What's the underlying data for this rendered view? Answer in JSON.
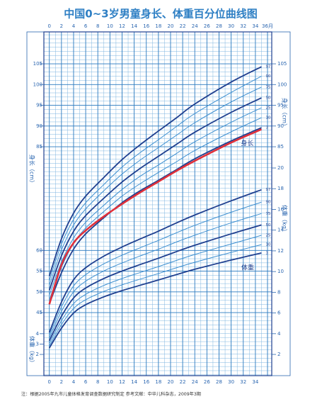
{
  "chart_data": {
    "type": "line",
    "title": "中国0~3岁男童身长、体重百分位曲线图",
    "y_label": "身长（cm）",
    "y2_label": "体重（kg）",
    "annotations": [
      "体重"
    ],
    "footnote": "注：根据2005年九市儿童体格发育调查数据研究制定    参考文献：中华儿科杂志，2009年3期",
    "xlim": [
      -0.9,
      36.7
    ],
    "xticks": [
      0,
      2,
      4,
      6,
      8,
      10,
      12,
      14,
      16,
      18,
      20,
      22,
      24,
      26,
      28,
      30,
      32,
      34,
      {
        "value": 36,
        "label": "36月"
      }
    ],
    "ylim": [
      29.8,
      112.7
    ],
    "yticks": [
      45,
      50,
      55,
      60,
      85,
      90,
      95,
      100,
      105
    ],
    "y2lim": [
      -0.05,
      33.14
    ],
    "y2ticks": [
      2,
      3,
      4,
      6,
      8,
      10,
      12,
      14,
      16,
      18,
      20
    ],
    "grid": true,
    "x": [
      0,
      2,
      4,
      6,
      9,
      12,
      15,
      18,
      21,
      24,
      30,
      35
    ],
    "series": [
      {
        "name": "97",
        "color": "#1f3f8f",
        "line_width": 1.8,
        "values": [
          53.8,
          62.8,
          69.0,
          73.1,
          77.6,
          81.9,
          85.5,
          88.8,
          92.0,
          95.3,
          100.6,
          104.3
        ]
      },
      {
        "name": "90",
        "color": "#3d8fd0",
        "line_width": 1,
        "values": [
          52.7,
          61.5,
          67.5,
          71.5,
          75.9,
          80.1,
          83.6,
          86.7,
          89.9,
          93.0,
          98.1,
          102.0
        ]
      },
      {
        "name": "75",
        "color": "#3d8fd0",
        "line_width": 1,
        "values": [
          51.6,
          60.1,
          66.1,
          70.0,
          74.4,
          78.4,
          81.8,
          84.8,
          87.8,
          90.8,
          95.8,
          99.4
        ]
      },
      {
        "name": "50",
        "color": "#1f3f8f",
        "line_width": 1.8,
        "values": [
          50.4,
          58.7,
          64.6,
          68.4,
          72.6,
          76.5,
          79.8,
          82.7,
          85.6,
          88.5,
          93.3,
          96.8
        ]
      },
      {
        "name": "25",
        "color": "#3d8fd0",
        "line_width": 1,
        "values": [
          49.2,
          57.2,
          63.0,
          66.8,
          70.9,
          74.7,
          77.9,
          80.6,
          83.4,
          86.2,
          90.9,
          94.4
        ]
      },
      {
        "name": "10",
        "color": "#3d8fd0",
        "line_width": 1,
        "values": [
          48.1,
          55.9,
          61.7,
          65.4,
          69.4,
          73.1,
          76.1,
          78.8,
          81.4,
          84.1,
          88.6,
          92.0
        ]
      },
      {
        "name": "3",
        "color": "#1f3f8f",
        "line_width": 1.8,
        "values": [
          47.1,
          54.6,
          60.3,
          64.0,
          67.9,
          71.5,
          74.4,
          76.9,
          79.5,
          82.1,
          86.4,
          89.6
        ]
      },
      {
        "name": "身长",
        "color": "#e0303a",
        "line_width": 2.6,
        "values": [
          47.0,
          56.5,
          61.8,
          64.8,
          68.2,
          71.2,
          74.0,
          76.6,
          79.2,
          81.6,
          86.0,
          89.2
        ]
      },
      {
        "name": "97",
        "color": "#1f3f8f",
        "line_width": 1.8,
        "axis": "y2",
        "values": [
          4.12,
          7.05,
          9.2,
          10.37,
          11.49,
          12.37,
          13.15,
          13.9,
          14.7,
          15.46,
          16.83,
          17.9
        ]
      },
      {
        "name": "90",
        "color": "#3d8fd0",
        "line_width": 1,
        "axis": "y2",
        "values": [
          3.85,
          6.59,
          8.61,
          9.7,
          10.75,
          11.58,
          12.3,
          13.01,
          13.75,
          14.46,
          15.73,
          16.7
        ]
      },
      {
        "name": "75",
        "color": "#3d8fd0",
        "line_width": 1,
        "axis": "y2",
        "values": [
          3.59,
          6.15,
          8.04,
          9.07,
          10.06,
          10.83,
          11.51,
          12.16,
          12.86,
          13.51,
          14.7,
          15.6
        ]
      },
      {
        "name": "50",
        "color": "#1f3f8f",
        "line_width": 1.8,
        "axis": "y2",
        "values": [
          3.32,
          5.68,
          7.45,
          8.41,
          9.33,
          10.05,
          10.68,
          11.29,
          11.93,
          12.54,
          13.64,
          14.5
        ]
      },
      {
        "name": "25",
        "color": "#3d8fd0",
        "line_width": 1,
        "axis": "y2",
        "values": [
          3.06,
          5.25,
          6.9,
          7.8,
          8.66,
          9.33,
          9.91,
          10.48,
          11.08,
          11.65,
          12.66,
          13.5
        ]
      },
      {
        "name": "10",
        "color": "#3d8fd0",
        "line_width": 1,
        "axis": "y2",
        "values": [
          2.83,
          4.88,
          6.43,
          7.28,
          8.09,
          8.72,
          9.27,
          9.81,
          10.37,
          10.9,
          11.85,
          12.6
        ]
      },
      {
        "name": "3",
        "color": "#1f3f8f",
        "line_width": 1.8,
        "axis": "y2",
        "values": [
          2.62,
          4.53,
          5.99,
          6.8,
          7.56,
          8.16,
          8.68,
          9.19,
          9.71,
          10.22,
          11.11,
          11.8
        ]
      }
    ]
  }
}
